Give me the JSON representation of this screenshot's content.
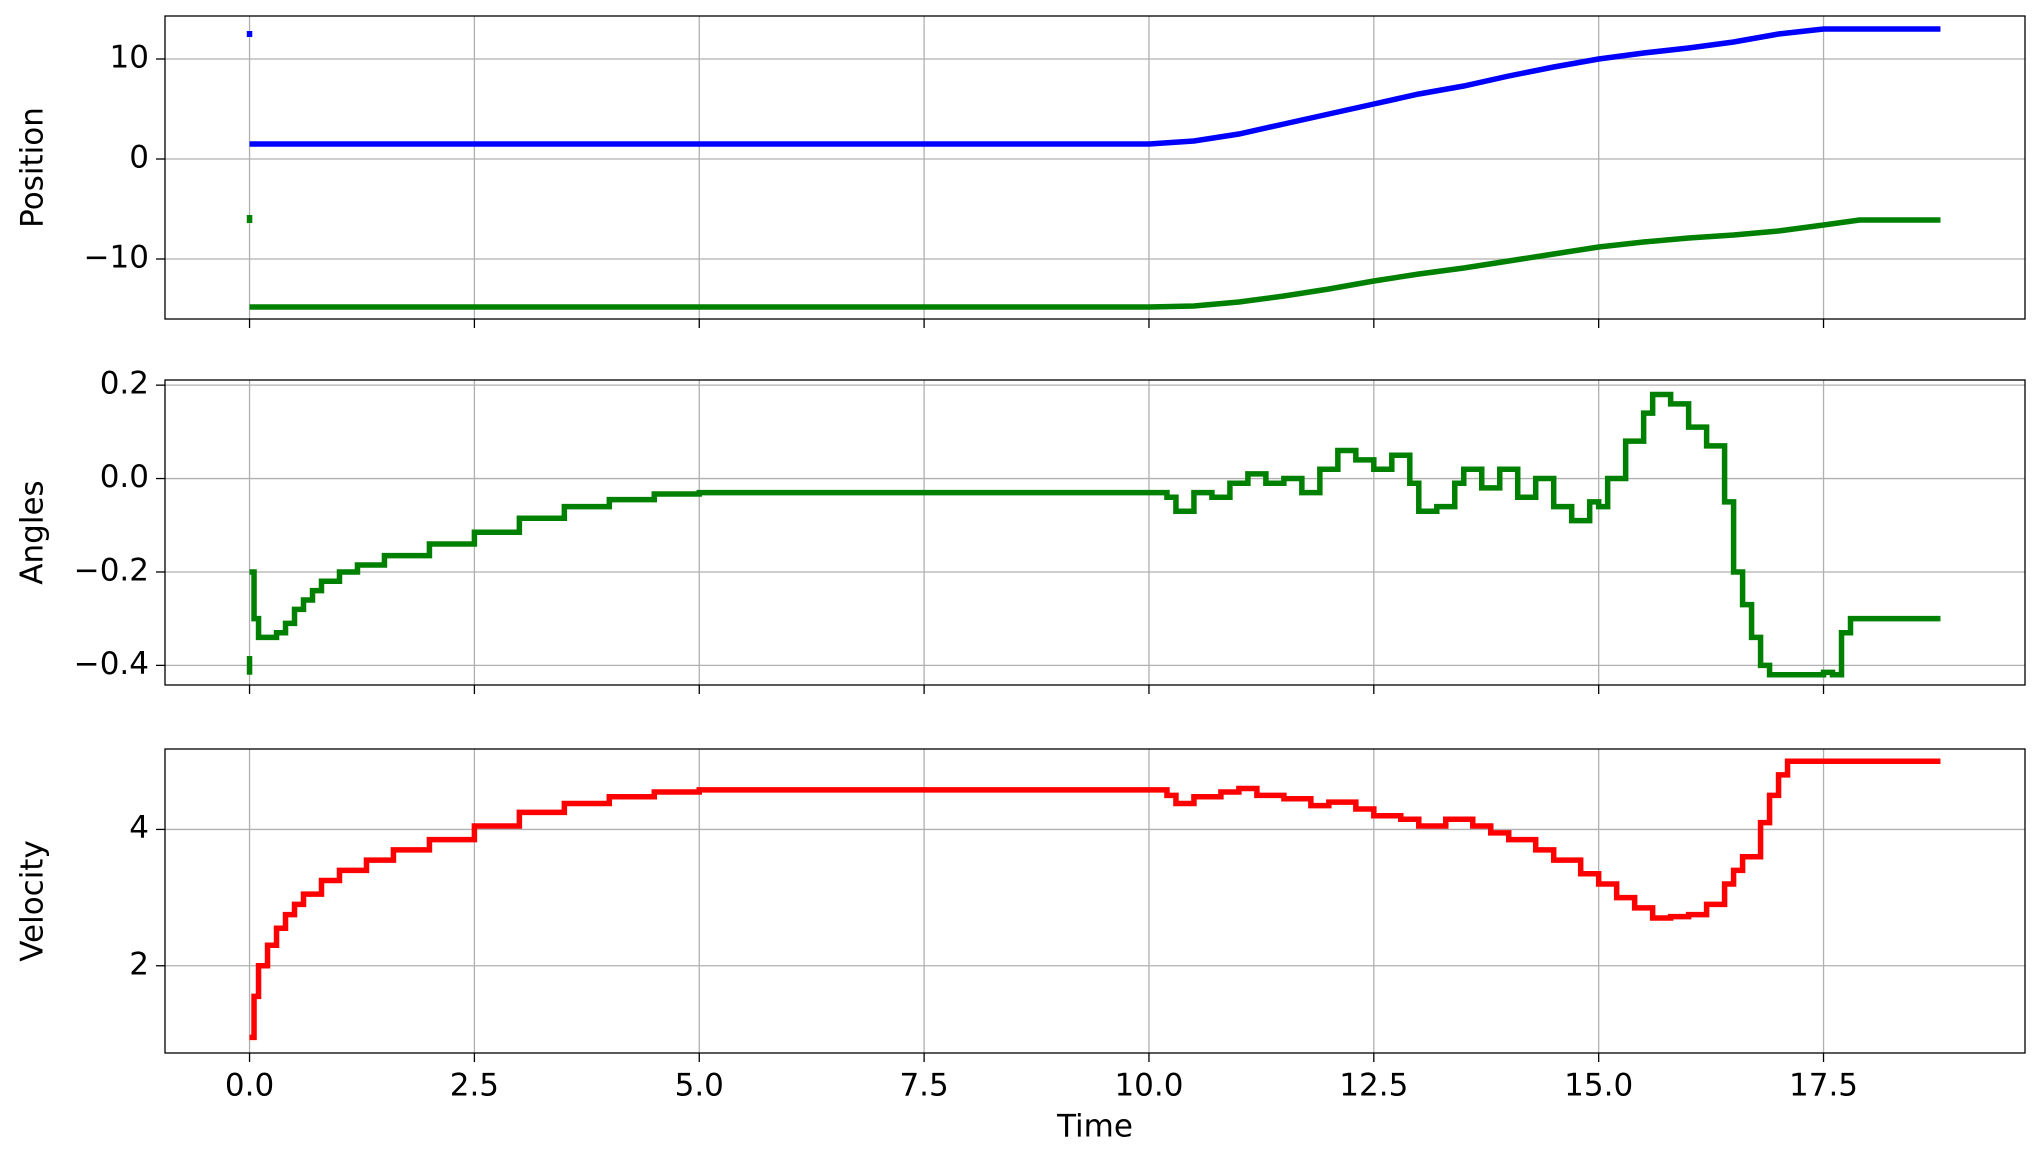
{
  "chart_data": [
    {
      "type": "line",
      "ylabel": "Position",
      "grid": true,
      "x_tick_labels": false,
      "x": [
        0,
        0,
        0,
        0,
        1,
        2,
        3,
        4,
        5,
        6,
        7,
        8,
        9,
        10,
        10.5,
        11,
        11.5,
        12,
        12.5,
        13,
        13.5,
        14,
        14.5,
        15,
        15.5,
        16,
        16.5,
        17,
        17.5,
        17.9,
        18.8
      ],
      "series": [
        {
          "color": "#0000ff",
          "values": [
            12.2,
            12.8,
            null,
            1.5,
            1.5,
            1.5,
            1.5,
            1.5,
            1.5,
            1.5,
            1.5,
            1.5,
            1.5,
            1.5,
            1.8,
            2.5,
            3.5,
            4.5,
            5.5,
            6.5,
            7.3,
            8.3,
            9.2,
            10.0,
            10.6,
            11.1,
            11.7,
            12.5,
            13.0,
            13.0,
            13.0
          ]
        },
        {
          "color": "#008000",
          "values": [
            -6.4,
            -5.6,
            null,
            -14.8,
            -14.8,
            -14.8,
            -14.8,
            -14.8,
            -14.8,
            -14.8,
            -14.8,
            -14.8,
            -14.8,
            -14.8,
            -14.7,
            -14.3,
            -13.7,
            -13.0,
            -12.2,
            -11.5,
            -10.9,
            -10.2,
            -9.5,
            -8.8,
            -8.3,
            -7.9,
            -7.6,
            -7.2,
            -6.6,
            -6.1,
            -6.1
          ]
        }
      ],
      "xlim": [
        -0.94,
        19.74
      ],
      "ylim": [
        -16.0,
        14.3
      ],
      "xticks": [
        {
          "value": 0,
          "label": "0.0"
        },
        2.5,
        {
          "value": 5,
          "label": "5.0"
        },
        7.5,
        {
          "value": 10,
          "label": "10.0"
        },
        12.5,
        {
          "value": 15,
          "label": "15.0"
        },
        17.5
      ],
      "yticks": [
        {
          "value": -10,
          "label": "−10"
        },
        0,
        10
      ]
    },
    {
      "type": "step",
      "ylabel": "Angles",
      "grid": true,
      "x_tick_labels": false,
      "x": [
        0,
        0,
        0,
        0,
        0.05,
        0.1,
        0.3,
        0.4,
        0.5,
        0.6,
        0.7,
        0.8,
        1.0,
        1.2,
        1.5,
        2.0,
        2.5,
        3.0,
        3.5,
        4.0,
        4.5,
        5.0,
        10.0,
        10.2,
        10.3,
        10.5,
        10.7,
        10.9,
        11.1,
        11.3,
        11.5,
        11.7,
        11.9,
        12.1,
        12.3,
        12.5,
        12.7,
        12.9,
        13.0,
        13.2,
        13.4,
        13.5,
        13.7,
        13.9,
        14.1,
        14.3,
        14.5,
        14.7,
        14.9,
        15.0,
        15.1,
        15.3,
        15.5,
        15.6,
        15.8,
        16.0,
        16.2,
        16.4,
        16.5,
        16.6,
        16.7,
        16.8,
        16.9,
        17.5,
        17.6,
        17.7,
        17.8,
        18.8
      ],
      "series": [
        {
          "color": "#008000",
          "values": [
            -0.42,
            -0.38,
            null,
            -0.2,
            -0.3,
            -0.34,
            -0.33,
            -0.31,
            -0.28,
            -0.26,
            -0.24,
            -0.22,
            -0.2,
            -0.185,
            -0.165,
            -0.14,
            -0.115,
            -0.085,
            -0.06,
            -0.045,
            -0.033,
            -0.03,
            -0.03,
            -0.04,
            -0.07,
            -0.03,
            -0.04,
            -0.01,
            0.01,
            -0.01,
            0.0,
            -0.03,
            0.02,
            0.06,
            0.04,
            0.02,
            0.05,
            -0.01,
            -0.07,
            -0.06,
            -0.01,
            0.02,
            -0.02,
            0.02,
            -0.04,
            0.0,
            -0.06,
            -0.09,
            -0.05,
            -0.06,
            0.0,
            0.08,
            0.14,
            0.18,
            0.16,
            0.11,
            0.07,
            -0.05,
            -0.2,
            -0.27,
            -0.34,
            -0.4,
            -0.42,
            -0.415,
            -0.42,
            -0.33,
            -0.3,
            -0.3
          ]
        }
      ],
      "xlim": [
        -0.94,
        19.74
      ],
      "ylim": [
        -0.442,
        0.211
      ],
      "xticks": [
        {
          "value": 0,
          "label": "0.0"
        },
        2.5,
        {
          "value": 5,
          "label": "5.0"
        },
        7.5,
        {
          "value": 10,
          "label": "10.0"
        },
        12.5,
        {
          "value": 15,
          "label": "15.0"
        },
        17.5
      ],
      "yticks": [
        {
          "value": -0.4,
          "label": "−0.4"
        },
        {
          "value": -0.2,
          "label": "−0.2"
        },
        {
          "value": 0,
          "label": "0.0"
        },
        0.2
      ]
    },
    {
      "type": "step",
      "ylabel": "Velocity",
      "xlabel": "Time",
      "grid": true,
      "x_tick_labels": true,
      "x": [
        0,
        0.05,
        0.1,
        0.2,
        0.3,
        0.4,
        0.5,
        0.6,
        0.8,
        1.0,
        1.3,
        1.6,
        2.0,
        2.5,
        3.0,
        3.5,
        4.0,
        4.5,
        5.0,
        10.0,
        10.2,
        10.3,
        10.5,
        10.8,
        11.0,
        11.2,
        11.5,
        11.8,
        12.0,
        12.3,
        12.5,
        12.8,
        13.0,
        13.3,
        13.6,
        13.8,
        14.0,
        14.3,
        14.5,
        14.8,
        15.0,
        15.2,
        15.4,
        15.6,
        15.8,
        16.0,
        16.2,
        16.4,
        16.5,
        16.6,
        16.8,
        16.9,
        17.0,
        17.1,
        18.8
      ],
      "series": [
        {
          "color": "#ff0000",
          "values": [
            0.95,
            1.55,
            2.0,
            2.3,
            2.55,
            2.75,
            2.9,
            3.05,
            3.25,
            3.4,
            3.55,
            3.7,
            3.85,
            4.05,
            4.25,
            4.38,
            4.48,
            4.55,
            4.58,
            4.58,
            4.5,
            4.38,
            4.48,
            4.55,
            4.6,
            4.5,
            4.45,
            4.35,
            4.4,
            4.3,
            4.2,
            4.15,
            4.05,
            4.15,
            4.05,
            3.95,
            3.85,
            3.7,
            3.55,
            3.35,
            3.2,
            3.0,
            2.85,
            2.7,
            2.72,
            2.75,
            2.9,
            3.2,
            3.4,
            3.6,
            4.1,
            4.5,
            4.8,
            5.0,
            5.0
          ]
        }
      ],
      "xlim": [
        -0.94,
        19.74
      ],
      "ylim": [
        0.72,
        5.18
      ],
      "xticks": [
        {
          "value": 0,
          "label": "0.0"
        },
        2.5,
        {
          "value": 5,
          "label": "5.0"
        },
        7.5,
        {
          "value": 10,
          "label": "10.0"
        },
        12.5,
        {
          "value": 15,
          "label": "15.0"
        },
        17.5
      ],
      "yticks": [
        2,
        4
      ]
    }
  ]
}
